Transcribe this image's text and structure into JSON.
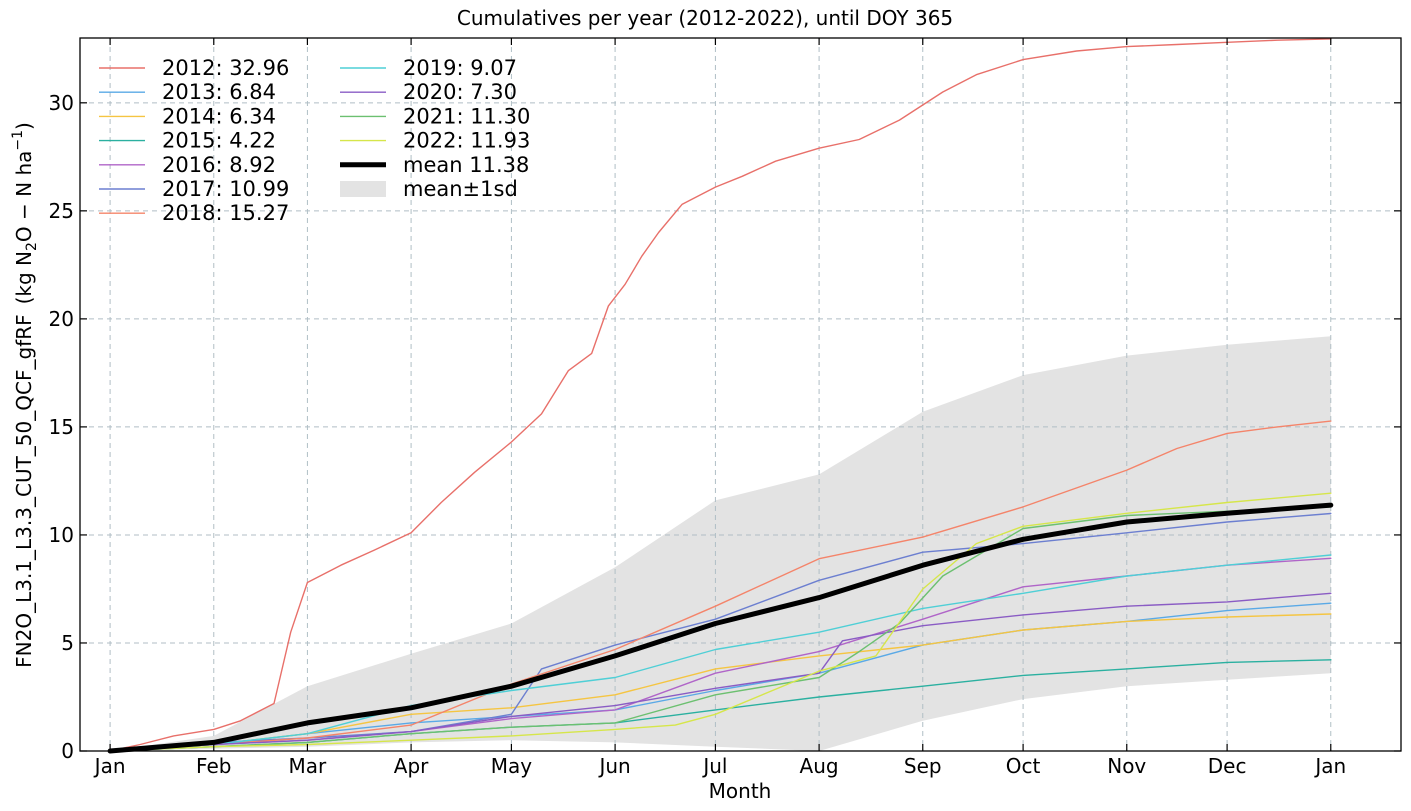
{
  "chart_data": {
    "type": "line",
    "title": "Cumulatives per year (2012-2022), until DOY 365",
    "xlabel": "Month",
    "ylabel_main": "FN2O_L3.1_L3.3_CUT_50_QCF_gfRF",
    "ylabel_unit_prefix": "(kg N",
    "ylabel_unit_sub": "2",
    "ylabel_unit_mid": "O − N ha",
    "ylabel_unit_sup": "−1",
    "ylabel_unit_suffix": ")",
    "x_tick_labels": [
      "Jan",
      "Feb",
      "Mar",
      "Apr",
      "May",
      "Jun",
      "Jul",
      "Aug",
      "Sep",
      "Oct",
      "Nov",
      "Dec",
      "Jan"
    ],
    "x_tick_days": [
      1,
      32,
      60,
      91,
      121,
      152,
      182,
      213,
      244,
      274,
      305,
      335,
      366
    ],
    "xlim": [
      -8,
      387
    ],
    "y_ticks": [
      0,
      5,
      10,
      15,
      20,
      25,
      30
    ],
    "ylim": [
      0,
      33
    ],
    "grid": true,
    "legend_position": "top-left",
    "x_unit": "day of year",
    "series": [
      {
        "name": "2012",
        "label": "2012: 32.96",
        "color": "#e8706a",
        "x": [
          1,
          10,
          20,
          32,
          40,
          50,
          55,
          60,
          70,
          80,
          91,
          100,
          110,
          121,
          130,
          138,
          145,
          150,
          155,
          160,
          165,
          172,
          182,
          190,
          200,
          213,
          225,
          237,
          250,
          260,
          274,
          290,
          305,
          320,
          335,
          350,
          366
        ],
        "y": [
          0,
          0.3,
          0.7,
          1.0,
          1.4,
          2.2,
          5.5,
          7.8,
          8.6,
          9.3,
          10.1,
          11.5,
          12.9,
          14.3,
          15.6,
          17.6,
          18.4,
          20.6,
          21.6,
          22.9,
          24.0,
          25.3,
          26.1,
          26.6,
          27.3,
          27.9,
          28.3,
          29.2,
          30.5,
          31.3,
          32.0,
          32.4,
          32.6,
          32.7,
          32.8,
          32.9,
          32.96
        ]
      },
      {
        "name": "2013",
        "label": "2013: 6.84",
        "color": "#5aa9e6",
        "x": [
          1,
          32,
          60,
          91,
          121,
          152,
          182,
          213,
          244,
          274,
          305,
          335,
          366
        ],
        "y": [
          0,
          0.3,
          0.8,
          1.3,
          1.6,
          1.9,
          2.8,
          3.6,
          4.9,
          5.6,
          6.0,
          6.5,
          6.84
        ]
      },
      {
        "name": "2014",
        "label": "2014: 6.34",
        "color": "#f5c542",
        "x": [
          1,
          32,
          60,
          91,
          121,
          152,
          182,
          213,
          244,
          274,
          305,
          335,
          366
        ],
        "y": [
          0,
          0.3,
          0.8,
          1.7,
          2.0,
          2.6,
          3.8,
          4.4,
          4.9,
          5.6,
          6.0,
          6.2,
          6.34
        ]
      },
      {
        "name": "2015",
        "label": "2015: 4.22",
        "color": "#2bb0a0",
        "x": [
          1,
          32,
          60,
          91,
          121,
          152,
          182,
          213,
          244,
          274,
          305,
          335,
          366
        ],
        "y": [
          0,
          0.2,
          0.4,
          0.8,
          1.1,
          1.3,
          1.9,
          2.5,
          3.0,
          3.5,
          3.8,
          4.1,
          4.22
        ]
      },
      {
        "name": "2016",
        "label": "2016: 8.92",
        "color": "#b065c8",
        "x": [
          1,
          32,
          60,
          91,
          121,
          152,
          182,
          213,
          244,
          274,
          305,
          335,
          366
        ],
        "y": [
          0,
          0.3,
          0.5,
          0.9,
          1.5,
          1.9,
          3.6,
          4.6,
          6.1,
          7.6,
          8.1,
          8.6,
          8.92
        ]
      },
      {
        "name": "2017",
        "label": "2017: 10.99",
        "color": "#6c7fd0",
        "x": [
          1,
          32,
          60,
          91,
          121,
          130,
          152,
          182,
          213,
          244,
          274,
          305,
          335,
          366
        ],
        "y": [
          0,
          0.4,
          0.6,
          0.9,
          1.7,
          3.8,
          4.9,
          6.1,
          7.9,
          9.2,
          9.6,
          10.1,
          10.6,
          10.99
        ]
      },
      {
        "name": "2018",
        "label": "2018: 15.27",
        "color": "#f4846a",
        "x": [
          1,
          32,
          60,
          91,
          121,
          152,
          182,
          213,
          244,
          274,
          305,
          320,
          335,
          350,
          366
        ],
        "y": [
          0,
          0.3,
          0.6,
          1.2,
          3.1,
          4.7,
          6.7,
          8.9,
          9.9,
          11.3,
          13.0,
          14.0,
          14.7,
          15.0,
          15.27
        ]
      },
      {
        "name": "2019",
        "label": "2019: 9.07",
        "color": "#4fcfd6",
        "x": [
          1,
          32,
          60,
          91,
          121,
          152,
          182,
          213,
          244,
          274,
          305,
          335,
          366
        ],
        "y": [
          0,
          0.3,
          0.8,
          2.1,
          2.8,
          3.4,
          4.7,
          5.5,
          6.6,
          7.3,
          8.1,
          8.6,
          9.07
        ]
      },
      {
        "name": "2020",
        "label": "2020: 7.30",
        "color": "#8a5cc4",
        "x": [
          1,
          32,
          60,
          91,
          121,
          152,
          182,
          213,
          220,
          244,
          274,
          305,
          335,
          366
        ],
        "y": [
          0,
          0.3,
          0.5,
          0.9,
          1.6,
          2.1,
          2.9,
          3.6,
          5.1,
          5.8,
          6.3,
          6.7,
          6.9,
          7.3
        ]
      },
      {
        "name": "2021",
        "label": "2021: 11.30",
        "color": "#6cc070",
        "x": [
          1,
          32,
          60,
          91,
          121,
          152,
          182,
          213,
          225,
          237,
          250,
          274,
          305,
          335,
          366
        ],
        "y": [
          0,
          0.2,
          0.4,
          0.8,
          1.1,
          1.3,
          2.6,
          3.4,
          4.6,
          5.9,
          8.1,
          10.3,
          10.9,
          11.1,
          11.3
        ]
      },
      {
        "name": "2022",
        "label": "2022: 11.93",
        "color": "#d6e64a",
        "x": [
          1,
          32,
          60,
          91,
          121,
          152,
          170,
          182,
          213,
          230,
          244,
          260,
          274,
          305,
          335,
          366
        ],
        "y": [
          0,
          0.2,
          0.3,
          0.5,
          0.7,
          1.0,
          1.2,
          1.7,
          3.7,
          4.4,
          7.5,
          9.6,
          10.4,
          11.0,
          11.5,
          11.93
        ]
      },
      {
        "name": "mean",
        "label": "mean 11.38",
        "color": "#000000",
        "x": [
          1,
          32,
          60,
          91,
          121,
          152,
          182,
          213,
          244,
          274,
          305,
          335,
          366
        ],
        "y": [
          0,
          0.4,
          1.3,
          2.0,
          3.0,
          4.4,
          5.9,
          7.1,
          8.6,
          9.8,
          10.6,
          11.0,
          11.38
        ]
      }
    ],
    "band": {
      "label": "mean±1sd",
      "color": "#e3e3e3",
      "x": [
        1,
        32,
        60,
        91,
        121,
        152,
        182,
        213,
        244,
        274,
        305,
        335,
        366
      ],
      "lower": [
        0,
        0.1,
        0.2,
        0.4,
        0.5,
        0.4,
        0.2,
        0.0,
        1.4,
        2.4,
        3.0,
        3.3,
        3.6
      ],
      "upper": [
        0,
        0.7,
        3.0,
        4.5,
        5.9,
        8.5,
        11.6,
        12.8,
        15.7,
        17.4,
        18.3,
        18.8,
        19.2
      ]
    }
  }
}
